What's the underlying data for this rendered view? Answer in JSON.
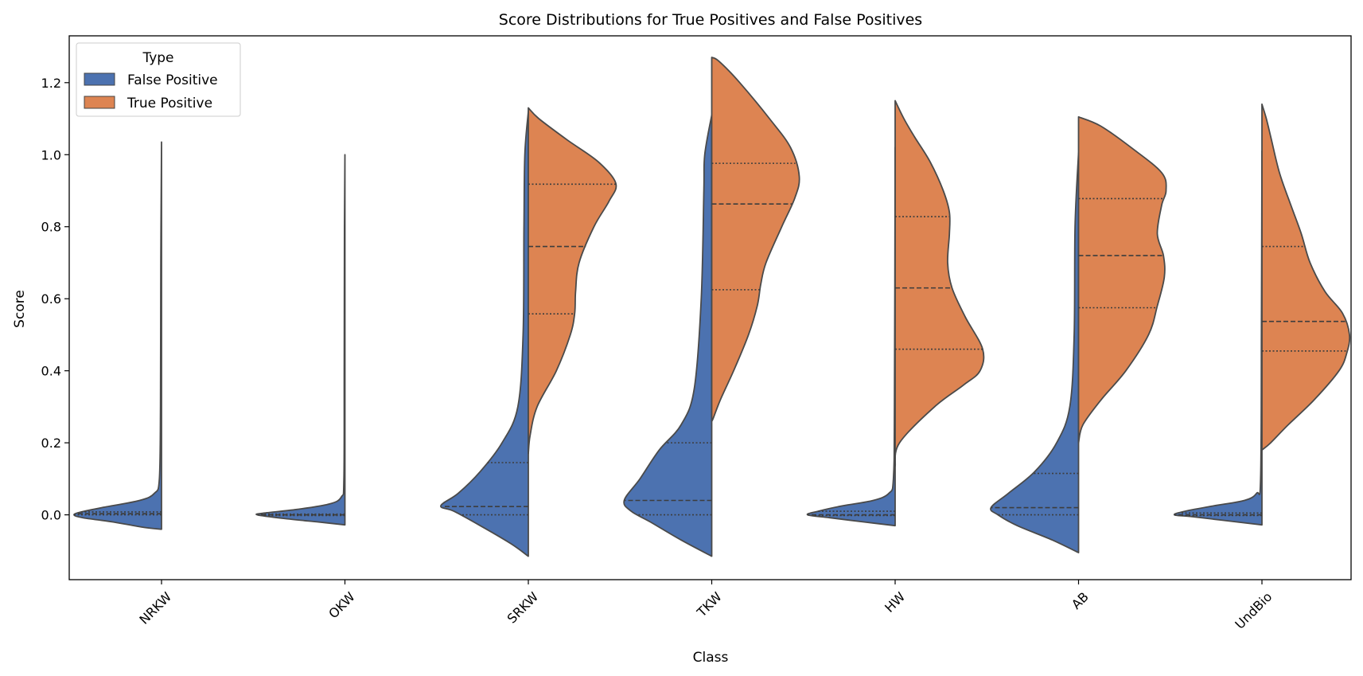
{
  "chart_data": {
    "type": "violin",
    "title": "Score Distributions for True Positives and False Positives",
    "xlabel": "Class",
    "ylabel": "Score",
    "categories": [
      "NRKW",
      "OKW",
      "SRKW",
      "TKW",
      "HW",
      "AB",
      "UndBio"
    ],
    "ylim": [
      -0.18,
      1.33
    ],
    "yticks": [
      0.0,
      0.2,
      0.4,
      0.6,
      0.8,
      1.0,
      1.2
    ],
    "ytick_labels": [
      "0.0",
      "0.2",
      "0.4",
      "0.6",
      "0.8",
      "1.0",
      "1.2"
    ],
    "split": true,
    "inner": "quartile",
    "legend": {
      "title": "Type",
      "position": "top-left"
    },
    "series": [
      {
        "name": "False Positive",
        "color": "#4c72b0",
        "side": "left",
        "violins": [
          {
            "min": -0.04,
            "max": 1.035,
            "q1": 0.0,
            "median": 0.003,
            "q3": 0.008,
            "profile": [
              [
                -0.04,
                0.0
              ],
              [
                -0.035,
                0.2
              ],
              [
                -0.02,
                0.55
              ],
              [
                -0.008,
                0.9
              ],
              [
                0.0,
                1.0
              ],
              [
                0.008,
                0.92
              ],
              [
                0.02,
                0.68
              ],
              [
                0.04,
                0.25
              ],
              [
                0.06,
                0.08
              ],
              [
                0.1,
                0.025
              ],
              [
                0.3,
                0.012
              ],
              [
                0.7,
                0.008
              ],
              [
                1.035,
                0.0
              ]
            ]
          },
          {
            "min": -0.028,
            "max": 1.0,
            "q1": -0.002,
            "median": 0.0,
            "q3": 0.002,
            "profile": [
              [
                -0.028,
                0.0
              ],
              [
                -0.02,
                0.3
              ],
              [
                -0.01,
                0.7
              ],
              [
                0.0,
                1.0
              ],
              [
                0.005,
                0.92
              ],
              [
                0.015,
                0.55
              ],
              [
                0.03,
                0.18
              ],
              [
                0.05,
                0.04
              ],
              [
                0.1,
                0.012
              ],
              [
                0.4,
                0.008
              ],
              [
                0.8,
                0.005
              ],
              [
                1.0,
                0.0
              ]
            ]
          },
          {
            "min": -0.115,
            "max": 1.12,
            "q1": 0.0,
            "median": 0.023,
            "q3": 0.145,
            "profile": [
              [
                -0.115,
                0.0
              ],
              [
                -0.08,
                0.2
              ],
              [
                -0.03,
                0.55
              ],
              [
                0.01,
                0.85
              ],
              [
                0.025,
                1.0
              ],
              [
                0.06,
                0.8
              ],
              [
                0.12,
                0.55
              ],
              [
                0.2,
                0.3
              ],
              [
                0.3,
                0.12
              ],
              [
                0.5,
                0.06
              ],
              [
                0.8,
                0.05
              ],
              [
                1.0,
                0.04
              ],
              [
                1.12,
                0.0
              ]
            ]
          },
          {
            "min": -0.115,
            "max": 1.11,
            "q1": 0.0,
            "median": 0.04,
            "q3": 0.2,
            "profile": [
              [
                -0.115,
                0.0
              ],
              [
                -0.07,
                0.35
              ],
              [
                -0.02,
                0.7
              ],
              [
                0.01,
                0.92
              ],
              [
                0.04,
                1.0
              ],
              [
                0.1,
                0.82
              ],
              [
                0.18,
                0.6
              ],
              [
                0.25,
                0.35
              ],
              [
                0.35,
                0.2
              ],
              [
                0.6,
                0.12
              ],
              [
                0.9,
                0.09
              ],
              [
                1.0,
                0.08
              ],
              [
                1.11,
                0.0
              ]
            ]
          },
          {
            "min": -0.03,
            "max": 1.02,
            "q1": -0.002,
            "median": 0.0,
            "q3": 0.01,
            "profile": [
              [
                -0.03,
                0.0
              ],
              [
                -0.02,
                0.35
              ],
              [
                -0.008,
                0.75
              ],
              [
                0.0,
                1.0
              ],
              [
                0.01,
                0.88
              ],
              [
                0.025,
                0.6
              ],
              [
                0.04,
                0.25
              ],
              [
                0.06,
                0.07
              ],
              [
                0.1,
                0.02
              ],
              [
                0.3,
                0.008
              ],
              [
                1.02,
                0.0
              ]
            ]
          },
          {
            "min": -0.105,
            "max": 1.005,
            "q1": 0.0,
            "median": 0.02,
            "q3": 0.115,
            "profile": [
              [
                -0.105,
                0.0
              ],
              [
                -0.07,
                0.3
              ],
              [
                -0.03,
                0.7
              ],
              [
                0.0,
                0.92
              ],
              [
                0.02,
                1.0
              ],
              [
                0.06,
                0.8
              ],
              [
                0.12,
                0.5
              ],
              [
                0.2,
                0.25
              ],
              [
                0.3,
                0.1
              ],
              [
                0.5,
                0.05
              ],
              [
                0.8,
                0.04
              ],
              [
                1.005,
                0.0
              ]
            ]
          },
          {
            "min": -0.028,
            "max": 1.01,
            "q1": -0.002,
            "median": 0.0,
            "q3": 0.005,
            "profile": [
              [
                -0.028,
                0.0
              ],
              [
                -0.015,
                0.45
              ],
              [
                -0.005,
                0.8
              ],
              [
                0.0,
                1.0
              ],
              [
                0.01,
                0.88
              ],
              [
                0.025,
                0.55
              ],
              [
                0.04,
                0.2
              ],
              [
                0.06,
                0.06
              ],
              [
                0.1,
                0.015
              ],
              [
                0.5,
                0.006
              ],
              [
                1.01,
                0.0
              ]
            ]
          }
        ]
      },
      {
        "name": "True Positive",
        "color": "#dd8452",
        "side": "right",
        "violins": [
          null,
          null,
          {
            "min": 0.17,
            "max": 1.13,
            "q1": 0.558,
            "median": 0.745,
            "q3": 0.918,
            "profile": [
              [
                0.17,
                0.0
              ],
              [
                0.22,
                0.02
              ],
              [
                0.3,
                0.1
              ],
              [
                0.4,
                0.32
              ],
              [
                0.5,
                0.48
              ],
              [
                0.56,
                0.53
              ],
              [
                0.62,
                0.54
              ],
              [
                0.7,
                0.58
              ],
              [
                0.8,
                0.75
              ],
              [
                0.87,
                0.92
              ],
              [
                0.92,
                1.0
              ],
              [
                0.98,
                0.8
              ],
              [
                1.04,
                0.45
              ],
              [
                1.1,
                0.12
              ],
              [
                1.13,
                0.0
              ]
            ]
          },
          {
            "min": 0.26,
            "max": 1.27,
            "q1": 0.625,
            "median": 0.863,
            "q3": 0.976,
            "profile": [
              [
                0.26,
                0.0
              ],
              [
                0.27,
                0.02
              ],
              [
                0.32,
                0.1
              ],
              [
                0.4,
                0.25
              ],
              [
                0.5,
                0.42
              ],
              [
                0.58,
                0.52
              ],
              [
                0.64,
                0.56
              ],
              [
                0.7,
                0.62
              ],
              [
                0.8,
                0.8
              ],
              [
                0.88,
                0.95
              ],
              [
                0.94,
                1.0
              ],
              [
                1.02,
                0.9
              ],
              [
                1.1,
                0.66
              ],
              [
                1.2,
                0.32
              ],
              [
                1.26,
                0.08
              ],
              [
                1.27,
                0.0
              ]
            ]
          },
          {
            "min": 0.135,
            "max": 1.15,
            "q1": 0.46,
            "median": 0.63,
            "q3": 0.828,
            "profile": [
              [
                0.135,
                0.0
              ],
              [
                0.2,
                0.05
              ],
              [
                0.3,
                0.45
              ],
              [
                0.36,
                0.78
              ],
              [
                0.4,
                0.97
              ],
              [
                0.46,
                1.0
              ],
              [
                0.55,
                0.8
              ],
              [
                0.63,
                0.65
              ],
              [
                0.7,
                0.6
              ],
              [
                0.78,
                0.62
              ],
              [
                0.84,
                0.62
              ],
              [
                0.9,
                0.55
              ],
              [
                0.98,
                0.4
              ],
              [
                1.05,
                0.22
              ],
              [
                1.1,
                0.1
              ],
              [
                1.15,
                0.0
              ]
            ]
          },
          {
            "min": 0.2,
            "max": 1.105,
            "q1": 0.575,
            "median": 0.72,
            "q3": 0.878,
            "profile": [
              [
                0.2,
                0.0
              ],
              [
                0.25,
                0.05
              ],
              [
                0.32,
                0.26
              ],
              [
                0.4,
                0.54
              ],
              [
                0.5,
                0.8
              ],
              [
                0.58,
                0.9
              ],
              [
                0.66,
                0.98
              ],
              [
                0.72,
                0.97
              ],
              [
                0.78,
                0.9
              ],
              [
                0.86,
                0.95
              ],
              [
                0.9,
                1.0
              ],
              [
                0.95,
                0.95
              ],
              [
                1.02,
                0.6
              ],
              [
                1.08,
                0.25
              ],
              [
                1.105,
                0.0
              ]
            ]
          },
          {
            "min": 0.18,
            "max": 1.14,
            "q1": 0.455,
            "median": 0.537,
            "q3": 0.745,
            "profile": [
              [
                0.18,
                0.0
              ],
              [
                0.2,
                0.1
              ],
              [
                0.25,
                0.3
              ],
              [
                0.32,
                0.6
              ],
              [
                0.4,
                0.88
              ],
              [
                0.45,
                0.97
              ],
              [
                0.5,
                1.0
              ],
              [
                0.56,
                0.92
              ],
              [
                0.62,
                0.72
              ],
              [
                0.7,
                0.55
              ],
              [
                0.78,
                0.45
              ],
              [
                0.86,
                0.33
              ],
              [
                0.95,
                0.2
              ],
              [
                1.05,
                0.1
              ],
              [
                1.1,
                0.05
              ],
              [
                1.14,
                0.0
              ]
            ]
          }
        ]
      }
    ]
  }
}
